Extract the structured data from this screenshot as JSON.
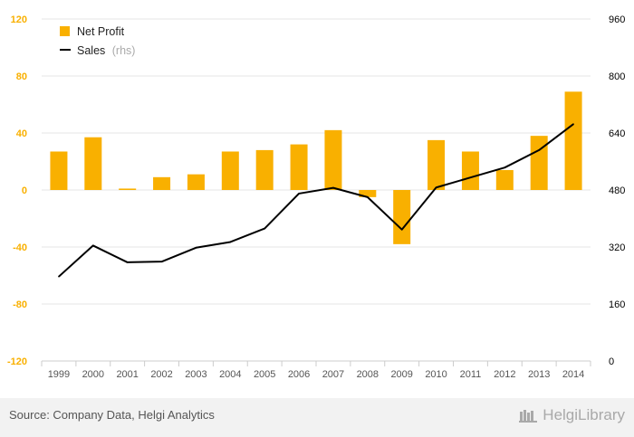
{
  "chart_data": {
    "type": "bar+line",
    "categories": [
      "1999",
      "2000",
      "2001",
      "2002",
      "2003",
      "2004",
      "2005",
      "2006",
      "2007",
      "2008",
      "2009",
      "2010",
      "2011",
      "2012",
      "2013",
      "2014"
    ],
    "series": [
      {
        "name": "Net Profit",
        "kind": "bar",
        "axis": "left",
        "color": "#f9b000",
        "values": [
          27,
          37,
          1,
          9,
          11,
          27,
          28,
          32,
          42,
          -5,
          -38,
          35,
          27,
          14,
          38,
          69
        ]
      },
      {
        "name": "Sales",
        "name_suffix": "(rhs)",
        "kind": "line",
        "axis": "right",
        "color": "#000000",
        "values": [
          237,
          324,
          277,
          279,
          318,
          334,
          372,
          470,
          486,
          460,
          369,
          487,
          515,
          543,
          592,
          665
        ]
      }
    ],
    "y_left": {
      "ticks": [
        "120",
        "80",
        "40",
        "0",
        "-40",
        "-80",
        "-120"
      ],
      "values": [
        120,
        80,
        40,
        0,
        -40,
        -80,
        -120
      ],
      "min": -120,
      "max": 120,
      "color": "#f9b000"
    },
    "y_right": {
      "ticks": [
        "960",
        "800",
        "640",
        "480",
        "320",
        "160",
        "0"
      ],
      "values": [
        960,
        800,
        640,
        480,
        320,
        160,
        0
      ],
      "min": 0,
      "max": 960,
      "color": "#000000"
    },
    "grid": true,
    "legend_position": "top-left"
  },
  "footer": {
    "source": "Source: Company Data, Helgi Analytics",
    "brand": "HelgiLibrary"
  }
}
